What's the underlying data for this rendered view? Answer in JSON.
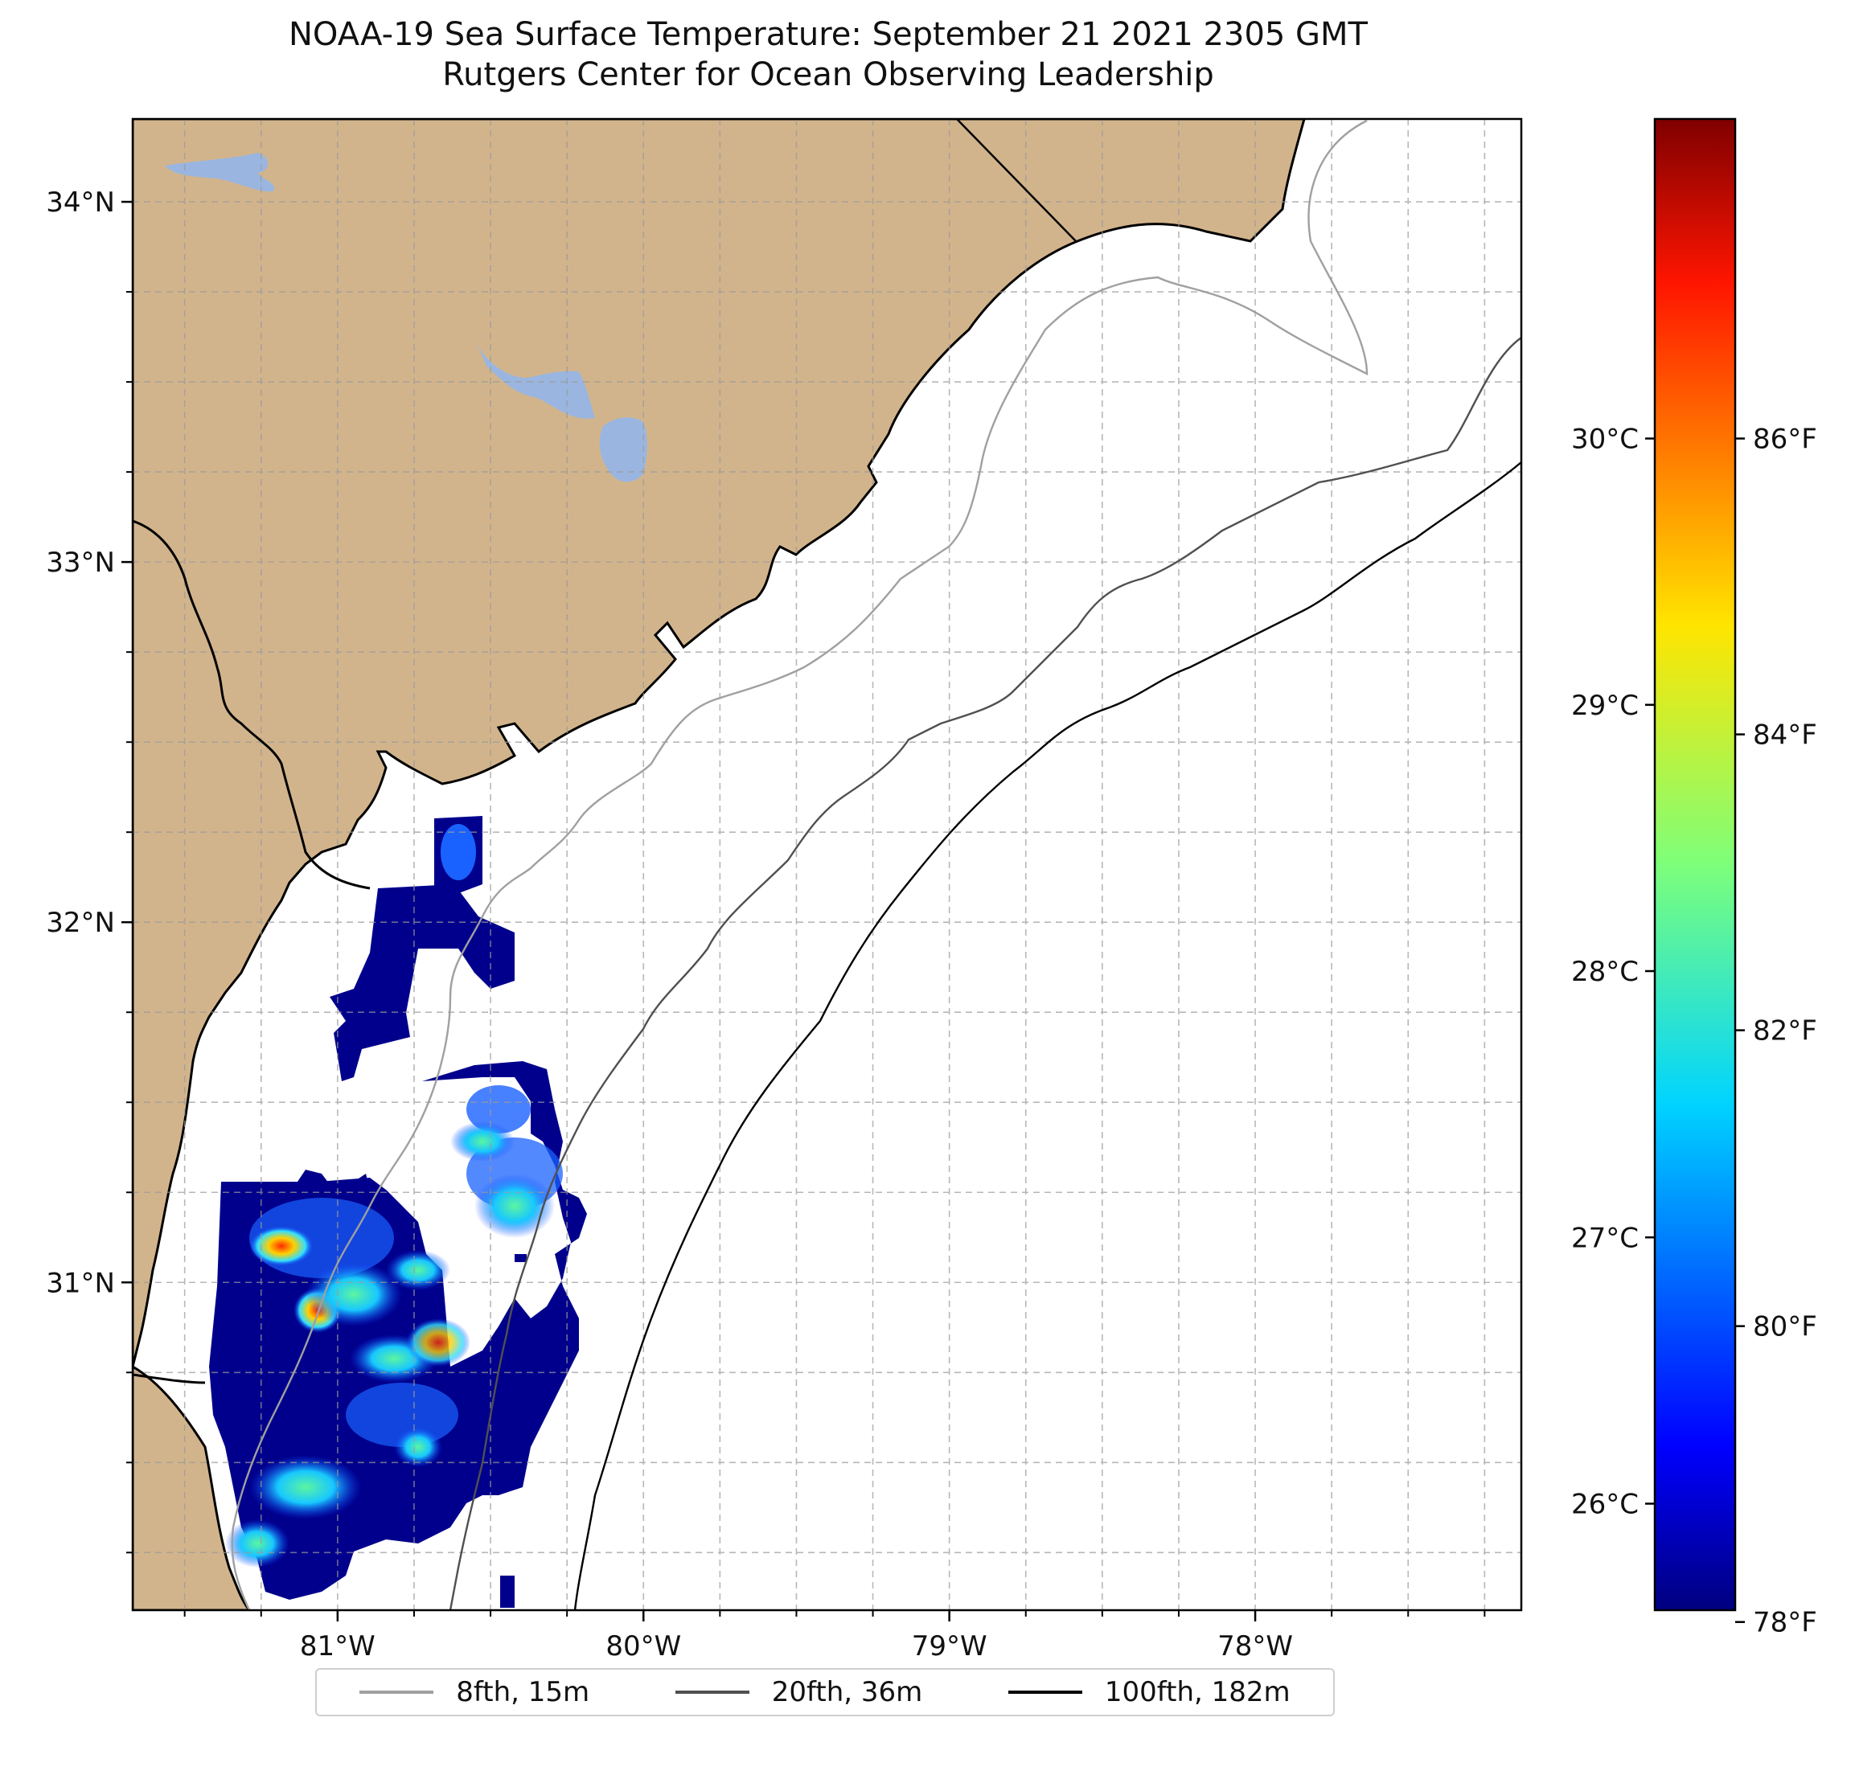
{
  "title": "NOAA-19 Sea Surface Temperature: September 21 2021 2305 GMT",
  "subtitle": "Rutgers Center for Ocean Observing Leadership",
  "map": {
    "lon_range": [
      -81.67,
      -77.13
    ],
    "lat_range": [
      30.09,
      34.23
    ],
    "lat_ticks": [
      {
        "value": 34,
        "label": "34°N"
      },
      {
        "value": 33,
        "label": "33°N"
      },
      {
        "value": 32,
        "label": "32°N"
      },
      {
        "value": 31,
        "label": "31°N"
      }
    ],
    "lon_ticks": [
      {
        "value": -81,
        "label": "81°W"
      },
      {
        "value": -80,
        "label": "80°W"
      },
      {
        "value": -79,
        "label": "79°W"
      },
      {
        "value": -78,
        "label": "78°W"
      }
    ],
    "land_color": "#d2b48c",
    "water_color": "#9ab6e0",
    "gridlines": true
  },
  "colorbar": {
    "colormap": "jet",
    "celsius_ticks": [
      {
        "value": 30,
        "label": "30°C"
      },
      {
        "value": 29,
        "label": "29°C"
      },
      {
        "value": 28,
        "label": "28°C"
      },
      {
        "value": 27,
        "label": "27°C"
      },
      {
        "value": 26,
        "label": "26°C"
      }
    ],
    "fahrenheit_ticks": [
      {
        "value": 86,
        "label": "86°F"
      },
      {
        "value": 84,
        "label": "84°F"
      },
      {
        "value": 82,
        "label": "82°F"
      },
      {
        "value": 80,
        "label": "80°F"
      },
      {
        "value": 78,
        "label": "78°F"
      }
    ],
    "range_c": [
      25.6,
      31.2
    ]
  },
  "legend": {
    "items": [
      {
        "label": "8fth, 15m",
        "color": "#a0a0a0"
      },
      {
        "label": "20fth, 36m",
        "color": "#505050"
      },
      {
        "label": "100fth, 182m",
        "color": "#000000"
      }
    ]
  }
}
